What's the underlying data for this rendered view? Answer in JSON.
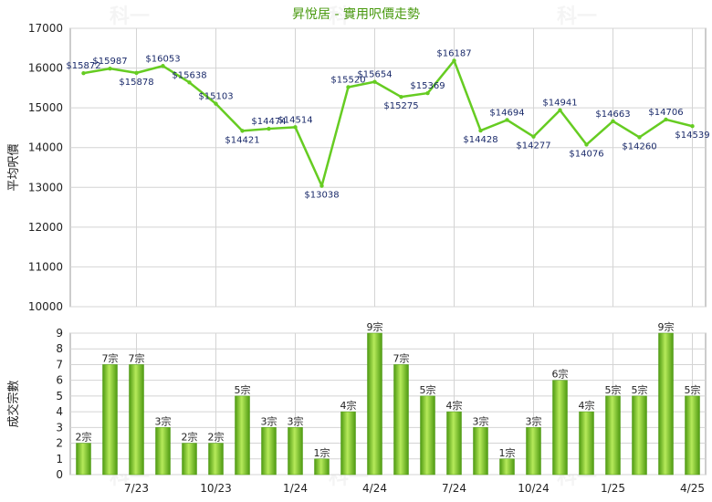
{
  "title": "昇悅居 - 實用呎價走勢",
  "chart_data": [
    {
      "type": "line",
      "ylabel": "平均呎價",
      "ylim": [
        10000,
        17000
      ],
      "yticks": [
        10000,
        11000,
        12000,
        13000,
        14000,
        15000,
        16000,
        17000
      ],
      "grid": true,
      "values": [
        15872,
        15987,
        15878,
        16053,
        15638,
        15103,
        14421,
        14474,
        14514,
        13038,
        15520,
        15654,
        15275,
        15369,
        16187,
        14428,
        14694,
        14277,
        14941,
        14076,
        14663,
        14260,
        14706,
        14539
      ],
      "labels": [
        "$15872",
        "$15987",
        "$15878",
        "$16053",
        "$15638",
        "$15103",
        "$14421",
        "$14474",
        "$14514",
        "$13038",
        "$15520",
        "$15654",
        "$15275",
        "$15369",
        "$16187",
        "$14428",
        "$14694",
        "$14277",
        "$14941",
        "$14076",
        "$14663",
        "$14260",
        "$14706",
        "$14539"
      ],
      "color": "#66cc22"
    },
    {
      "type": "bar",
      "ylabel": "成交宗數",
      "ylim": [
        0,
        9
      ],
      "yticks": [
        0,
        1,
        2,
        3,
        4,
        5,
        6,
        7,
        8,
        9
      ],
      "grid": true,
      "values": [
        2,
        7,
        7,
        3,
        2,
        2,
        5,
        3,
        3,
        1,
        4,
        9,
        7,
        5,
        4,
        3,
        1,
        3,
        6,
        4,
        5,
        5,
        9,
        5
      ],
      "labels": [
        "2宗",
        "7宗",
        "7宗",
        "3宗",
        "2宗",
        "2宗",
        "5宗",
        "3宗",
        "3宗",
        "1宗",
        "4宗",
        "9宗",
        "7宗",
        "5宗",
        "4宗",
        "3宗",
        "1宗",
        "3宗",
        "6宗",
        "4宗",
        "5宗",
        "5宗",
        "9宗",
        "5宗"
      ],
      "xticks": [
        {
          "index": 2,
          "label": "7/23"
        },
        {
          "index": 5,
          "label": "10/23"
        },
        {
          "index": 8,
          "label": "1/24"
        },
        {
          "index": 11,
          "label": "4/24"
        },
        {
          "index": 14,
          "label": "7/24"
        },
        {
          "index": 17,
          "label": "10/24"
        },
        {
          "index": 20,
          "label": "1/25"
        },
        {
          "index": 23,
          "label": "4/25"
        }
      ],
      "color": "#66bb22"
    }
  ],
  "watermark": "科一"
}
